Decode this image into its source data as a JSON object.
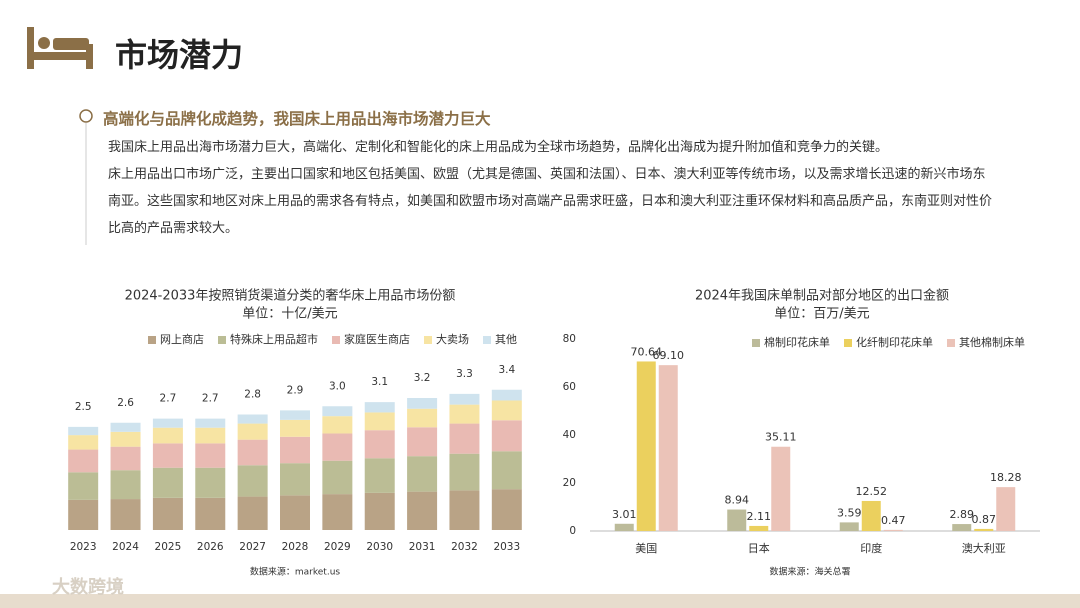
{
  "header": {
    "title": "市场潜力"
  },
  "section": {
    "heading": "高端化与品牌化成趋势，我国床上用品出海市场潜力巨大",
    "paragraphs": [
      "我国床上用品出海市场潜力巨大，高端化、定制化和智能化的床上用品成为全球市场趋势，品牌化出海成为提升附加值和竞争力的关键。",
      "床上用品出口市场广泛，主要出口国家和地区包括美国、欧盟（尤其是德国、英国和法国）、日本、澳大利亚等传统市场，以及需求增长迅速的新兴市场东南亚。这些国家和地区对床上用品的需求各有特点，如美国和欧盟市场对高端产品需求旺盛，日本和澳大利亚注重环保材料和高品质产品，东南亚则对性价比高的产品需求较大。"
    ]
  },
  "footer": {
    "logo": "大数跨境"
  },
  "chart_data": [
    {
      "type": "stacked_bar",
      "title": "2024-2033年按照销货渠道分类的奢华床上用品市场份额",
      "subtitle": "单位：十亿/美元",
      "categories": [
        "2023",
        "2024",
        "2025",
        "2026",
        "2027",
        "2028",
        "2029",
        "2030",
        "2031",
        "2032",
        "2033"
      ],
      "series": [
        {
          "name": "网上商店",
          "color": "#b9a386",
          "values": [
            0.73,
            0.75,
            0.78,
            0.78,
            0.81,
            0.84,
            0.87,
            0.9,
            0.93,
            0.96,
            0.99
          ]
        },
        {
          "name": "特殊床上用品超市",
          "color": "#bbbd95",
          "values": [
            0.67,
            0.7,
            0.73,
            0.73,
            0.76,
            0.78,
            0.81,
            0.84,
            0.86,
            0.89,
            0.92
          ]
        },
        {
          "name": "家庭医生商店",
          "color": "#e9bab3",
          "values": [
            0.55,
            0.57,
            0.59,
            0.59,
            0.62,
            0.64,
            0.66,
            0.68,
            0.7,
            0.73,
            0.75
          ]
        },
        {
          "name": "大卖场",
          "color": "#f7e4a3",
          "values": [
            0.35,
            0.36,
            0.38,
            0.38,
            0.39,
            0.41,
            0.42,
            0.43,
            0.45,
            0.46,
            0.48
          ]
        },
        {
          "name": "其他",
          "color": "#cfe3ee",
          "values": [
            0.2,
            0.22,
            0.22,
            0.22,
            0.22,
            0.23,
            0.24,
            0.25,
            0.26,
            0.26,
            0.26
          ]
        }
      ],
      "totals": [
        2.5,
        2.6,
        2.7,
        2.7,
        2.8,
        2.9,
        3,
        3.1,
        3.2,
        3.3,
        3.4
      ],
      "total_labels": [
        "2.5",
        "2.6",
        "2.7",
        "2.7",
        "2.8",
        "2.9",
        "3.0",
        "3.1",
        "3.2",
        "3.3",
        "3.4"
      ],
      "ylim": [
        0,
        4
      ],
      "source": "数据来源：market.us"
    },
    {
      "type": "bar",
      "title": "2024年我国床单制品对部分地区的出口金额",
      "subtitle": "单位：百万/美元",
      "categories": [
        "美国",
        "日本",
        "印度",
        "澳大利亚"
      ],
      "series": [
        {
          "name": "棉制印花床单",
          "color": "#bcbb9a",
          "values": [
            3.01,
            8.94,
            3.59,
            2.89
          ],
          "value_labels": [
            "3.01",
            "8.94",
            "3.59",
            "2.89"
          ]
        },
        {
          "name": "化纤制印花床单",
          "color": "#ebd05e",
          "values": [
            70.64,
            2.11,
            12.52,
            0.87
          ],
          "value_labels": [
            "70.64",
            "2.11",
            "12.52",
            "0.87"
          ]
        },
        {
          "name": "其他棉制床单",
          "color": "#ebc3b8",
          "values": [
            69.1,
            35.11,
            0.47,
            18.28
          ],
          "value_labels": [
            "69.10",
            "35.11",
            "0.47",
            "18.28"
          ]
        }
      ],
      "ylim": [
        0,
        80
      ],
      "yticks": [
        0,
        20,
        40,
        60,
        80
      ],
      "source": "数据来源：海关总署"
    }
  ]
}
